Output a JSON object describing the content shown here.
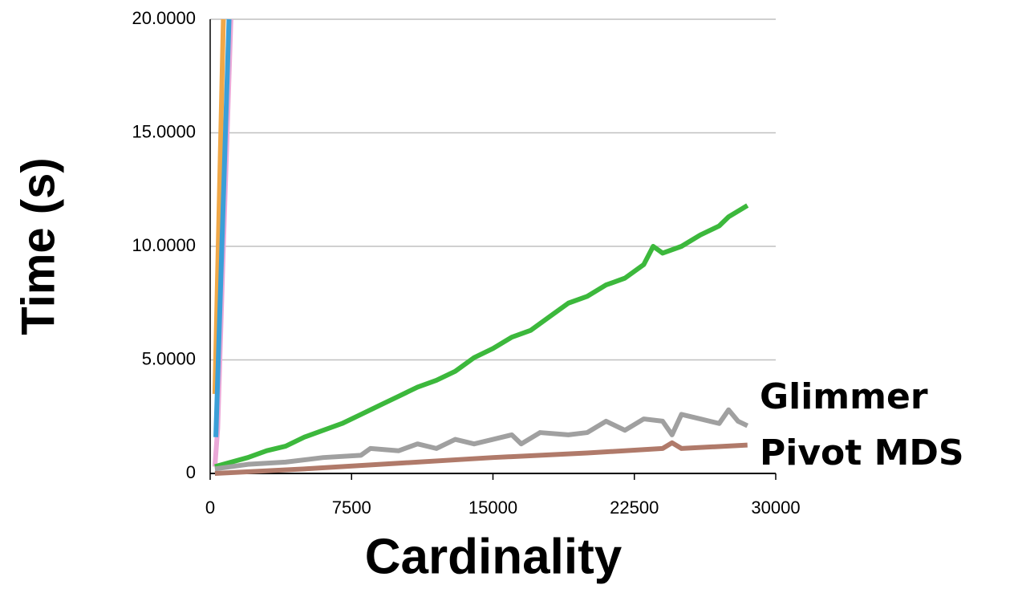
{
  "chart_data": {
    "type": "line",
    "xlabel": "Cardinality",
    "ylabel": "Time (s)",
    "xlim": [
      0,
      30000
    ],
    "xticks": [
      0,
      7500,
      15000,
      22500,
      30000
    ],
    "ylim": [
      0,
      20
    ],
    "yticks": [
      0,
      {
        "value": 5,
        "label": "5.0000"
      },
      {
        "value": 10,
        "label": "10.0000"
      },
      {
        "value": 15,
        "label": "15.0000"
      },
      {
        "value": 20,
        "label": "20.0000"
      }
    ],
    "grid": true,
    "series": [
      {
        "color": "#f0a848",
        "x": [
          250,
          700
        ],
        "values": [
          3.5,
          20
        ]
      },
      {
        "color": "#eaa8d8",
        "x": [
          250,
          400,
          700,
          1100
        ],
        "values": [
          0.3,
          2,
          10,
          20
        ]
      },
      {
        "color": "#3a9fd8",
        "x": [
          300,
          1000
        ],
        "values": [
          1.6,
          20
        ]
      },
      {
        "color": "#3cb83c",
        "x": [
          250,
          2000,
          3000,
          4000,
          5000,
          6000,
          7000,
          8000,
          9000,
          10000,
          11000,
          12000,
          13000,
          14000,
          15000,
          16000,
          17000,
          18000,
          19000,
          20000,
          21000,
          22000,
          23000,
          23500,
          24000,
          25000,
          26000,
          27000,
          27500,
          28500
        ],
        "values": [
          0.3,
          0.7,
          1.0,
          1.2,
          1.6,
          1.9,
          2.2,
          2.6,
          3.0,
          3.4,
          3.8,
          4.1,
          4.5,
          5.1,
          5.5,
          6.0,
          6.3,
          6.9,
          7.5,
          7.8,
          8.3,
          8.6,
          9.2,
          10.0,
          9.7,
          10.0,
          10.5,
          10.9,
          11.3,
          11.8
        ]
      },
      {
        "name": "Glimmer",
        "color": "#a0a0a0",
        "x": [
          250,
          2000,
          4000,
          6000,
          8000,
          8500,
          10000,
          11000,
          12000,
          13000,
          14000,
          15000,
          16000,
          16500,
          17500,
          19000,
          20000,
          21000,
          22000,
          23000,
          24000,
          24500,
          25000,
          26000,
          27000,
          27500,
          28000,
          28500
        ],
        "values": [
          0.2,
          0.4,
          0.5,
          0.7,
          0.8,
          1.1,
          1.0,
          1.3,
          1.1,
          1.5,
          1.3,
          1.5,
          1.7,
          1.3,
          1.8,
          1.7,
          1.8,
          2.3,
          1.9,
          2.4,
          2.3,
          1.7,
          2.6,
          2.4,
          2.2,
          2.8,
          2.3,
          2.1
        ]
      },
      {
        "name": "Pivot MDS",
        "color": "#b07a6a",
        "x": [
          250,
          5000,
          10000,
          15000,
          20000,
          24000,
          24500,
          25000,
          28500
        ],
        "values": [
          0,
          0.2,
          0.45,
          0.7,
          0.9,
          1.1,
          1.35,
          1.1,
          1.25
        ]
      }
    ]
  }
}
